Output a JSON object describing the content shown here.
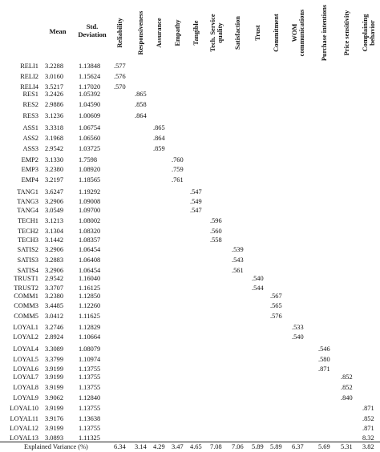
{
  "columns": {
    "mean": "Mean",
    "std": "Std.\nDeviation",
    "factors": [
      "Reliability",
      "Responsiveness",
      "Assurance",
      "Empathy",
      "Tangible",
      "Tech. Service\nquality",
      "Satisfaction",
      "Trust",
      "Commitment",
      "WOM\ncommunications",
      "Purchase intentions",
      "Price sensitivity",
      "Complaining\nbehavior"
    ]
  },
  "rows": [
    {
      "label": "RELI1",
      "mean": "3.2288",
      "std": "1.13848",
      "factor": 0,
      "loading": ".577"
    },
    {
      "label": "RELI2",
      "mean": "3.0160",
      "std": "1.15624",
      "factor": 0,
      "loading": ".576"
    },
    {
      "label": "RELI4",
      "mean": "3.5217",
      "std": "1.17020",
      "factor": 0,
      "loading": ".570"
    },
    {
      "label": "RES1",
      "mean": "3.2426",
      "std": "1.05392",
      "factor": 1,
      "loading": ".865"
    },
    {
      "label": "RES2",
      "mean": "2.9886",
      "std": "1.04590",
      "factor": 1,
      "loading": ".858"
    },
    {
      "label": "RES3",
      "mean": "3.1236",
      "std": "1.00609",
      "factor": 1,
      "loading": ".864"
    },
    {
      "label": "ASS1",
      "mean": "3.3318",
      "std": "1.06754",
      "factor": 2,
      "loading": ".865"
    },
    {
      "label": "ASS2",
      "mean": "3.1968",
      "std": "1.06560",
      "factor": 2,
      "loading": ".864"
    },
    {
      "label": "ASS3",
      "mean": "2.9542",
      "std": "1.03725",
      "factor": 2,
      "loading": ".859"
    },
    {
      "label": "EMP2",
      "mean": "3.1330",
      "std": "1.7598",
      "factor": 3,
      "loading": ".760"
    },
    {
      "label": "EMP3",
      "mean": "3.2380",
      "std": "1.08920",
      "factor": 3,
      "loading": ".759"
    },
    {
      "label": "EMP4",
      "mean": "3.2197",
      "std": "1.18565",
      "factor": 3,
      "loading": ".761"
    },
    {
      "label": "TANG1",
      "mean": "3.6247",
      "std": "1.19292",
      "factor": 4,
      "loading": ".547"
    },
    {
      "label": "TANG3",
      "mean": "3.2906",
      "std": "1.09008",
      "factor": 4,
      "loading": ".549"
    },
    {
      "label": "TANG4",
      "mean": "3.0549",
      "std": "1.09700",
      "factor": 4,
      "loading": ".547"
    },
    {
      "label": "TECH1",
      "mean": "3.1213",
      "std": "1.08002",
      "factor": 5,
      "loading": ".596"
    },
    {
      "label": "TECH2",
      "mean": "3.1304",
      "std": "1.08320",
      "factor": 5,
      "loading": ".560"
    },
    {
      "label": "TECH3",
      "mean": "3.1442",
      "std": "1.08357",
      "factor": 5,
      "loading": ".558"
    },
    {
      "label": "SATIS2",
      "mean": "3.2906",
      "std": "1.06454",
      "factor": 6,
      "loading": ".539"
    },
    {
      "label": "SATIS3",
      "mean": "3.2883",
      "std": "1.06408",
      "factor": 6,
      "loading": ".543"
    },
    {
      "label": "SATIS4",
      "mean": "3.2906",
      "std": "1.06454",
      "factor": 6,
      "loading": ".561"
    },
    {
      "label": "TRUST1",
      "mean": "2.9542",
      "std": "1.16040",
      "factor": 7,
      "loading": ".540"
    },
    {
      "label": "TRUST2",
      "mean": "3.3707",
      "std": "1.16125",
      "factor": 7,
      "loading": ".544"
    },
    {
      "label": "COMM1",
      "mean": "3.2380",
      "std": "1.12850",
      "factor": 8,
      "loading": ".567"
    },
    {
      "label": "COMM3",
      "mean": "3.4485",
      "std": "1.12260",
      "factor": 8,
      "loading": ".565"
    },
    {
      "label": "COMM5",
      "mean": "3.0412",
      "std": "1.11625",
      "factor": 8,
      "loading": ".576"
    },
    {
      "label": "LOYAL1",
      "mean": "3.2746",
      "std": "1.12829",
      "factor": 9,
      "loading": ".533"
    },
    {
      "label": "LOYAL2",
      "mean": "2.8924",
      "std": "1.10664",
      "factor": 9,
      "loading": ".540"
    },
    {
      "label": "LOYAL4",
      "mean": "3.3089",
      "std": "1.08079",
      "factor": 10,
      "loading": ".546"
    },
    {
      "label": "LOYAL5",
      "mean": "3.3799",
      "std": "1.10974",
      "factor": 10,
      "loading": ".580"
    },
    {
      "label": "LOYAL6",
      "mean": "3.9199",
      "std": "1.13755",
      "factor": 10,
      "loading": ".871"
    },
    {
      "label": "LOYAL7",
      "mean": "3.9199",
      "std": "1.13755",
      "factor": 11,
      "loading": ".852"
    },
    {
      "label": "LOYAL8",
      "mean": "3.9199",
      "std": "1.13755",
      "factor": 11,
      "loading": ".852"
    },
    {
      "label": "LOYAL9",
      "mean": "3.9062",
      "std": "1.12840",
      "factor": 11,
      "loading": ".840"
    },
    {
      "label": "LOYAL10",
      "mean": "3.9199",
      "std": "1.13755",
      "factor": 12,
      "loading": ".871"
    },
    {
      "label": "LOYAL11",
      "mean": "3.9176",
      "std": "1.13638",
      "factor": 12,
      "loading": ".852"
    },
    {
      "label": "LOYAL12",
      "mean": "3.9199",
      "std": "1.13755",
      "factor": 12,
      "loading": ".871"
    },
    {
      "label": "LOYAL13",
      "mean": "3.0893",
      "std": "1.11325",
      "factor": 12,
      "loading": "8.32"
    }
  ],
  "footer": {
    "label": "Explained Variance (%)",
    "values": [
      "6.34",
      "3.14",
      "4.29",
      "3.47",
      "4.65",
      "7.08",
      "7.06",
      "5.89",
      "5.89",
      "6.37",
      "5.69",
      "5.31",
      "3.82"
    ]
  }
}
